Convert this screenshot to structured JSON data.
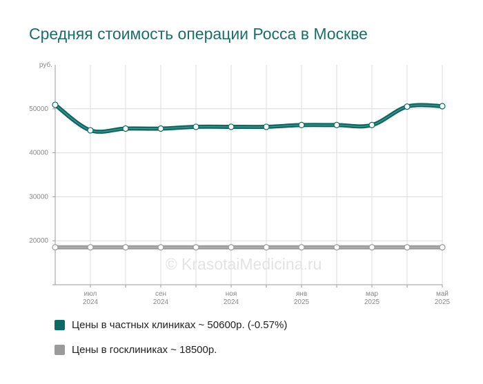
{
  "chart_data": {
    "type": "line",
    "title": "Средняя стоимость операции Росса в Москве",
    "ylabel": "руб.",
    "ylim": [
      10000,
      60000
    ],
    "yticks": [
      "20000",
      "30000",
      "40000",
      "50000"
    ],
    "x_ticks": [
      {
        "month": "июл",
        "year": "2024",
        "index": 1
      },
      {
        "month": "сен",
        "year": "2024",
        "index": 3
      },
      {
        "month": "ноя",
        "year": "2024",
        "index": 5
      },
      {
        "month": "янв",
        "year": "2025",
        "index": 7
      },
      {
        "month": "мар",
        "year": "2025",
        "index": 9
      },
      {
        "month": "май",
        "year": "2025",
        "index": 11
      }
    ],
    "x": [
      "2024-06",
      "2024-07",
      "2024-08",
      "2024-09",
      "2024-10",
      "2024-11",
      "2024-12",
      "2025-01",
      "2025-02",
      "2025-03",
      "2025-04",
      "2025-05"
    ],
    "grid": true,
    "series": [
      {
        "name": "Цены в частных клиниках ~ 50600р. (-0.57%)",
        "color": "#0b6b64",
        "values": [
          50900,
          45100,
          45500,
          45500,
          45900,
          45900,
          45900,
          46300,
          46300,
          46300,
          50500,
          50600
        ]
      },
      {
        "name": "Цены в госклиниках ~ 18500р.",
        "color": "#9a9a9a",
        "values": [
          18500,
          18500,
          18500,
          18500,
          18500,
          18500,
          18500,
          18500,
          18500,
          18500,
          18500,
          18500
        ]
      }
    ],
    "watermark": "© KrasotaiMedicina.ru"
  }
}
